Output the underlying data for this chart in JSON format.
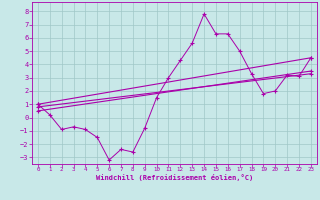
{
  "xlabel": "Windchill (Refroidissement éolien,°C)",
  "xlim": [
    -0.5,
    23.5
  ],
  "ylim": [
    -3.5,
    8.7
  ],
  "yticks": [
    -3,
    -2,
    -1,
    0,
    1,
    2,
    3,
    4,
    5,
    6,
    7,
    8
  ],
  "xticks": [
    0,
    1,
    2,
    3,
    4,
    5,
    6,
    7,
    8,
    9,
    10,
    11,
    12,
    13,
    14,
    15,
    16,
    17,
    18,
    19,
    20,
    21,
    22,
    23
  ],
  "bg_color": "#c8e8e8",
  "grid_color": "#a0c8c8",
  "line_color": "#aa00aa",
  "jagged_x": [
    0,
    1,
    2,
    3,
    4,
    5,
    6,
    7,
    8,
    9,
    10,
    11,
    12,
    13,
    14,
    15,
    16,
    17,
    18,
    19,
    20,
    21,
    22,
    23
  ],
  "jagged_y": [
    1.0,
    0.2,
    -0.9,
    -0.7,
    -0.9,
    -1.5,
    -3.2,
    -2.4,
    -2.6,
    -0.8,
    1.5,
    3.0,
    4.3,
    5.6,
    7.8,
    6.3,
    6.3,
    5.0,
    3.3,
    1.8,
    2.0,
    3.2,
    3.1,
    4.5
  ],
  "straight_lines": [
    {
      "x": [
        0,
        23
      ],
      "y": [
        1.0,
        4.5
      ]
    },
    {
      "x": [
        0,
        23
      ],
      "y": [
        0.8,
        3.3
      ]
    },
    {
      "x": [
        0,
        23
      ],
      "y": [
        0.5,
        3.5
      ]
    }
  ]
}
